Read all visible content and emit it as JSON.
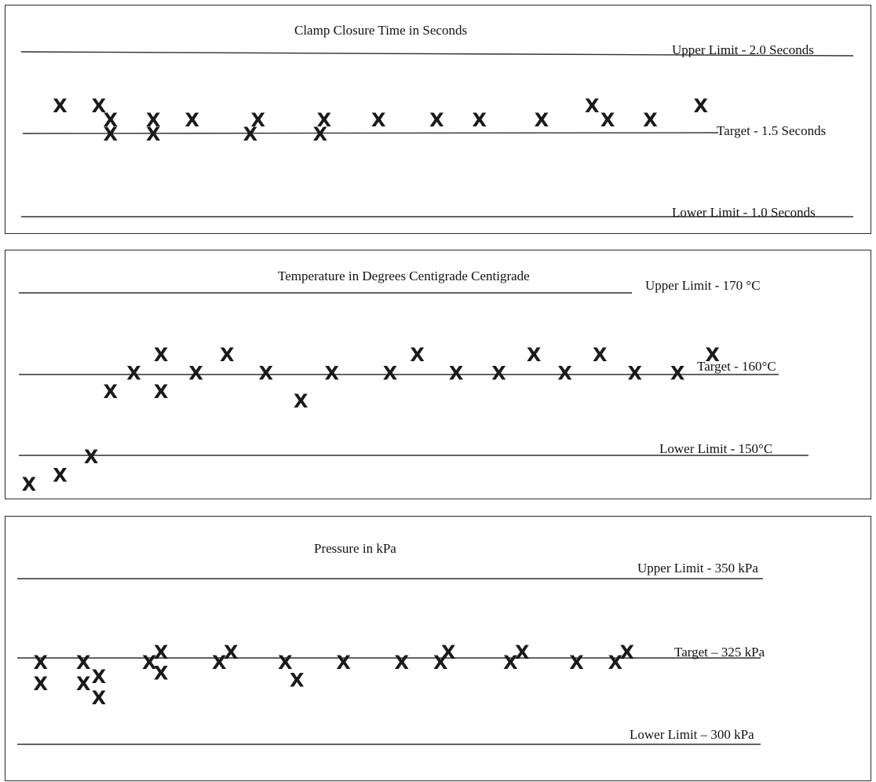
{
  "chart_data": [
    {
      "type": "scatter",
      "title": "Clamp Closure Time in Seconds",
      "ylim": [
        0.8,
        2.2
      ],
      "xlim": [
        1,
        20
      ],
      "reference_lines": [
        {
          "label": "Upper Limit - 2.0 Seconds",
          "value": 2.0
        },
        {
          "label": "Target - 1.5 Seconds",
          "value": 1.5
        },
        {
          "label": "Lower Limit - 1.0 Seconds",
          "value": 1.0
        }
      ],
      "points": [
        {
          "x": 2,
          "y": 1.6
        },
        {
          "x": 3,
          "y": 1.6
        },
        {
          "x": 3.3,
          "y": 1.5
        },
        {
          "x": 3.3,
          "y": 1.4
        },
        {
          "x": 4.4,
          "y": 1.5
        },
        {
          "x": 4.4,
          "y": 1.4
        },
        {
          "x": 5.4,
          "y": 1.5
        },
        {
          "x": 6.9,
          "y": 1.4
        },
        {
          "x": 7.1,
          "y": 1.5
        },
        {
          "x": 8.7,
          "y": 1.4
        },
        {
          "x": 8.8,
          "y": 1.5
        },
        {
          "x": 10.2,
          "y": 1.5
        },
        {
          "x": 11.7,
          "y": 1.5
        },
        {
          "x": 12.8,
          "y": 1.5
        },
        {
          "x": 14.4,
          "y": 1.5
        },
        {
          "x": 15.7,
          "y": 1.6
        },
        {
          "x": 16.1,
          "y": 1.5
        },
        {
          "x": 17.2,
          "y": 1.5
        },
        {
          "x": 18.5,
          "y": 1.6
        }
      ]
    },
    {
      "type": "scatter",
      "title": "Temperature in Degrees Centigrade Centigrade",
      "ylim": [
        147,
        172
      ],
      "xlim": [
        1,
        20
      ],
      "reference_lines": [
        {
          "label": "Upper Limit - 170 °C",
          "value": 170
        },
        {
          "label": "Target - 160°C",
          "value": 160
        },
        {
          "label": "Lower Limit - 150°C",
          "value": 150
        }
      ],
      "points": [
        {
          "x": 1.2,
          "y": 148
        },
        {
          "x": 2,
          "y": 149
        },
        {
          "x": 2.8,
          "y": 151
        },
        {
          "x": 3.3,
          "y": 158
        },
        {
          "x": 3.9,
          "y": 160
        },
        {
          "x": 4.6,
          "y": 162
        },
        {
          "x": 4.6,
          "y": 158
        },
        {
          "x": 5.5,
          "y": 160
        },
        {
          "x": 6.3,
          "y": 162
        },
        {
          "x": 7.3,
          "y": 160
        },
        {
          "x": 8.2,
          "y": 157
        },
        {
          "x": 9.0,
          "y": 160
        },
        {
          "x": 10.5,
          "y": 160
        },
        {
          "x": 11.2,
          "y": 162
        },
        {
          "x": 12.2,
          "y": 160
        },
        {
          "x": 13.3,
          "y": 160
        },
        {
          "x": 14.2,
          "y": 162
        },
        {
          "x": 15.0,
          "y": 160
        },
        {
          "x": 15.9,
          "y": 162
        },
        {
          "x": 16.8,
          "y": 160
        },
        {
          "x": 17.9,
          "y": 160
        },
        {
          "x": 18.8,
          "y": 162
        }
      ]
    },
    {
      "type": "scatter",
      "title": "Pressure in kPa",
      "ylim": [
        295,
        360
      ],
      "xlim": [
        1,
        20
      ],
      "reference_lines": [
        {
          "label": "Upper Limit - 350 kPa",
          "value": 350
        },
        {
          "label": "Target – 325 kPa",
          "value": 325
        },
        {
          "label": "Lower Limit – 300 kPa",
          "value": 300
        }
      ],
      "points": [
        {
          "x": 1.5,
          "y": 325
        },
        {
          "x": 1.5,
          "y": 319
        },
        {
          "x": 2.6,
          "y": 325
        },
        {
          "x": 2.6,
          "y": 319
        },
        {
          "x": 3.0,
          "y": 321
        },
        {
          "x": 3.0,
          "y": 315
        },
        {
          "x": 4.3,
          "y": 325
        },
        {
          "x": 4.6,
          "y": 328
        },
        {
          "x": 4.6,
          "y": 322
        },
        {
          "x": 6.1,
          "y": 325
        },
        {
          "x": 6.4,
          "y": 328
        },
        {
          "x": 7.8,
          "y": 325
        },
        {
          "x": 8.1,
          "y": 320
        },
        {
          "x": 9.3,
          "y": 325
        },
        {
          "x": 10.8,
          "y": 325
        },
        {
          "x": 11.8,
          "y": 325
        },
        {
          "x": 12.0,
          "y": 328
        },
        {
          "x": 13.6,
          "y": 325
        },
        {
          "x": 13.9,
          "y": 328
        },
        {
          "x": 15.3,
          "y": 325
        },
        {
          "x": 16.3,
          "y": 325
        },
        {
          "x": 16.6,
          "y": 328
        }
      ]
    }
  ]
}
